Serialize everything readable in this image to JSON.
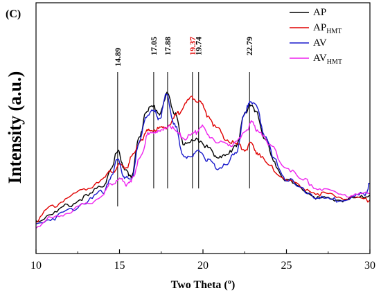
{
  "chart_data": {
    "type": "line",
    "panel_label": "(C)",
    "xlabel": "Two Theta (º)",
    "ylabel": "Intensity (a.u.)",
    "xlim": [
      10,
      30
    ],
    "ylim": [
      0,
      100
    ],
    "x_ticks": [
      "10",
      "15",
      "20",
      "25",
      "30"
    ],
    "legend_position": "top-right",
    "peaks": [
      {
        "label": "14.89",
        "x": 14.89,
        "color": "#000000"
      },
      {
        "label": "17.05",
        "x": 17.05,
        "color": "#000000"
      },
      {
        "label": "17.88",
        "x": 17.88,
        "color": "#000000"
      },
      {
        "label": "19.37",
        "x": 19.37,
        "color": "#e00000"
      },
      {
        "label": "19.74",
        "x": 19.74,
        "color": "#000000"
      },
      {
        "label": "22.79",
        "x": 22.79,
        "color": "#000000"
      }
    ],
    "series": [
      {
        "name": "AP",
        "subscript": "",
        "color": "#000000",
        "x": [
          10,
          11,
          12,
          13,
          14,
          14.5,
          14.9,
          15.3,
          15.7,
          16.2,
          16.6,
          17.05,
          17.4,
          17.9,
          18.3,
          18.8,
          19.4,
          19.8,
          20.3,
          20.8,
          21.4,
          22.0,
          22.5,
          22.8,
          23.2,
          23.7,
          24.3,
          25.0,
          26.0,
          27.0,
          28.0,
          29.0,
          30.0
        ],
        "y": [
          7,
          12,
          17,
          22,
          29,
          38,
          51,
          38,
          35,
          58,
          75,
          77,
          73,
          85,
          73,
          55,
          56,
          57,
          52,
          47,
          47,
          54,
          72,
          79,
          73,
          58,
          42,
          32,
          26,
          21,
          20,
          21,
          23
        ]
      },
      {
        "name": "AP",
        "subscript": "HMT",
        "color": "#e00000",
        "x": [
          10,
          11,
          12,
          13,
          14,
          14.6,
          15.0,
          15.4,
          15.8,
          16.3,
          16.7,
          17.1,
          17.6,
          18.0,
          18.5,
          19.0,
          19.4,
          19.8,
          20.3,
          20.8,
          21.4,
          22.0,
          22.5,
          22.9,
          23.3,
          24.0,
          25.0,
          26.0,
          27.0,
          28.0,
          29.0,
          30.0
        ],
        "y": [
          8,
          16,
          22,
          27,
          33,
          38,
          41,
          40,
          47,
          57,
          62,
          63,
          64,
          66,
          73,
          80,
          83,
          80,
          72,
          64,
          57,
          54,
          51,
          54,
          49,
          40,
          33,
          27,
          24,
          22,
          21,
          20
        ]
      },
      {
        "name": "AV",
        "subscript": "",
        "color": "#1a1acc",
        "x": [
          10,
          11,
          12,
          13,
          14,
          14.5,
          14.9,
          15.3,
          15.7,
          16.2,
          16.6,
          17.05,
          17.4,
          17.8,
          18.3,
          18.8,
          19.4,
          19.8,
          20.3,
          20.8,
          21.4,
          22.0,
          22.5,
          22.8,
          23.2,
          23.7,
          24.3,
          25.0,
          26.0,
          27.0,
          28.0,
          29.0,
          29.7,
          30.0
        ],
        "y": [
          5,
          9,
          14,
          19,
          25,
          34,
          46,
          33,
          33,
          55,
          72,
          74,
          70,
          84,
          67,
          47,
          47,
          50,
          44,
          40,
          41,
          50,
          72,
          81,
          77,
          60,
          44,
          33,
          26,
          21,
          20,
          22,
          24,
          30
        ]
      },
      {
        "name": "AV",
        "subscript": "HMT",
        "color": "#ee22ee",
        "x": [
          10,
          11,
          12,
          13,
          14,
          14.5,
          15.0,
          15.4,
          15.8,
          16.3,
          16.7,
          17.1,
          17.5,
          18.0,
          18.5,
          19.0,
          19.5,
          19.9,
          20.4,
          21.0,
          21.6,
          22.2,
          22.6,
          22.9,
          23.3,
          24.0,
          25.0,
          26.0,
          27.0,
          28.0,
          29.0,
          30.0
        ],
        "y": [
          4,
          9,
          13,
          17,
          23,
          30,
          33,
          30,
          33,
          48,
          60,
          62,
          62,
          66,
          60,
          58,
          61,
          65,
          59,
          55,
          54,
          57,
          63,
          67,
          63,
          53,
          40,
          32,
          27,
          24,
          23,
          24
        ]
      }
    ]
  }
}
